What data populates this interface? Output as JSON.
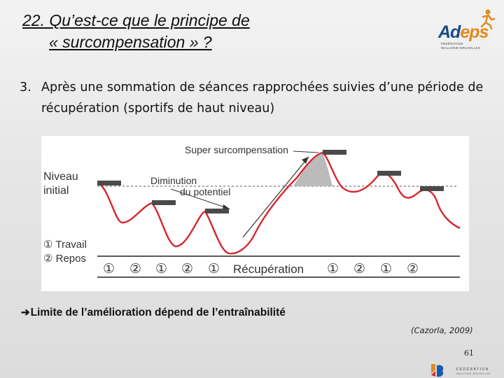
{
  "title": {
    "line1": "22. Qu’est-ce que le principe de",
    "line2": "« surcompensation » ?"
  },
  "logo": {
    "name": "Adeps",
    "name_a": "Ad",
    "name_b": "eps",
    "sub1": "FÉDÉRATION",
    "sub2": "WALLONIE-BRUXELLES",
    "icon": "runner-icon"
  },
  "point": {
    "number": "3.",
    "text": "Après une sommation de séances rapprochées suivies d’une période de récupération (sportifs de haut niveau)"
  },
  "diagram": {
    "labels": {
      "super": "Super surcompensation",
      "niveau1": "Niveau",
      "niveau2": "initial",
      "diminution1": "Diminution",
      "diminution2": "du potentiel",
      "legend1": "① Travail",
      "legend2": "② Repos",
      "recuperation": "Récupération"
    },
    "phase_markers": [
      "①",
      "②",
      "①",
      "②",
      "①",
      "①",
      "②",
      "①",
      "②"
    ],
    "colors": {
      "curve": "#d9262b",
      "bar": "#4a4a4a",
      "shade": "#bbbbbb",
      "baseline": "#222222"
    }
  },
  "limit": {
    "arrow": "➔",
    "text": "Limite de l’amélioration dépend de l’entraînabilité"
  },
  "citation": "(Cazorla, 2009)",
  "page_number": "61",
  "footer_logo": {
    "line1": "FÉDÉRATION",
    "line2": "WALLONIE-BRUXELLES",
    "icon": "federation-logo-icon"
  }
}
